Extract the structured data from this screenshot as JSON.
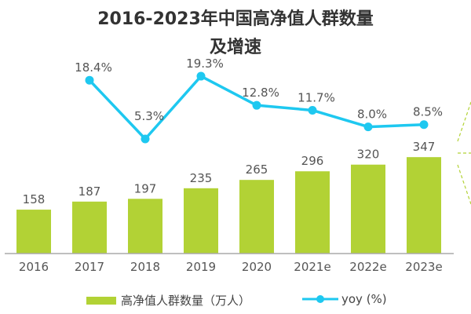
{
  "chart_data": {
    "type": "bar+line",
    "title": "2016-2023年中国高净值人群数量",
    "title_line2": "及增速",
    "categories": [
      "2016",
      "2017",
      "2018",
      "2019",
      "2020",
      "2021e",
      "2022e",
      "2023e"
    ],
    "series": [
      {
        "name": "高净值人群数量（万人）",
        "type": "bar",
        "color": "#b2d235",
        "values": [
          158,
          187,
          197,
          235,
          265,
          296,
          320,
          347
        ]
      },
      {
        "name": "yoy (%)",
        "type": "line",
        "color": "#1ec8f0",
        "values": [
          null,
          18.4,
          5.3,
          19.3,
          12.8,
          11.7,
          8.0,
          8.5
        ],
        "labels": [
          "",
          "18.4%",
          "5.3%",
          "19.3%",
          "12.8%",
          "11.7%",
          "8.0%",
          "8.5%"
        ]
      }
    ],
    "legend_position": "bottom",
    "grid": false
  }
}
